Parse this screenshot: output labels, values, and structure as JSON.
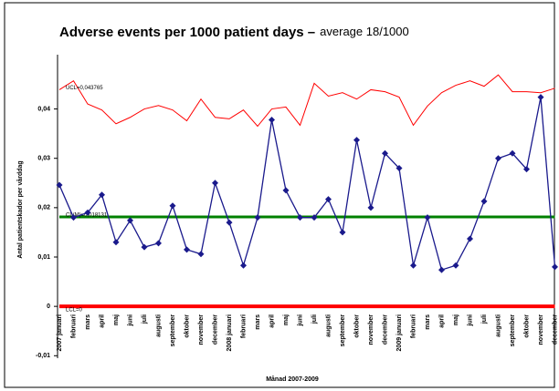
{
  "chart_data": {
    "type": "line",
    "title": "Adverse events per 1000 patient days –",
    "subtitle": "average 18/1000",
    "y_label": "Antal patientskador per vårddag",
    "x_label": "Månad 2007-2009",
    "categories": [
      "2007 januari",
      "februari",
      "mars",
      "april",
      "maj",
      "juni",
      "juli",
      "augusti",
      "september",
      "oktober",
      "november",
      "december",
      "2008 januari",
      "februari",
      "mars",
      "april",
      "maj",
      "juni",
      "juli",
      "augusti",
      "september",
      "oktober",
      "november",
      "december",
      "2009 januari",
      "februari",
      "mars",
      "april",
      "maj",
      "juni",
      "juli",
      "augusti",
      "september",
      "oktober",
      "november",
      "december"
    ],
    "series": [
      {
        "label": "UCL=0,043765",
        "color": "#ff0000",
        "values": [
          0.0439,
          0.0457,
          0.041,
          0.0398,
          0.037,
          0.0383,
          0.04,
          0.0407,
          0.0398,
          0.0376,
          0.042,
          0.0383,
          0.038,
          0.0398,
          0.0365,
          0.04,
          0.0404,
          0.0367,
          0.0452,
          0.0426,
          0.0433,
          0.042,
          0.0439,
          0.0435,
          0.0424,
          0.0367,
          0.0406,
          0.0433,
          0.0448,
          0.0457,
          0.0446,
          0.0469,
          0.0435,
          0.0435,
          0.0433,
          0.0442
        ]
      },
      {
        "label": "CL(M)=0,018131",
        "color": "#008000",
        "values": [
          0.018131,
          0.018131,
          0.018131,
          0.018131,
          0.018131,
          0.018131,
          0.018131,
          0.018131,
          0.018131,
          0.018131,
          0.018131,
          0.018131,
          0.018131,
          0.018131,
          0.018131,
          0.018131,
          0.018131,
          0.018131,
          0.018131,
          0.018131,
          0.018131,
          0.018131,
          0.018131,
          0.018131,
          0.018131,
          0.018131,
          0.018131,
          0.018131,
          0.018131,
          0.018131,
          0.018131,
          0.018131,
          0.018131,
          0.018131,
          0.018131,
          0.018131
        ]
      },
      {
        "label": "LCL=0",
        "color": "#ff0000",
        "values": [
          0,
          0,
          0,
          0,
          0,
          0,
          0,
          0,
          0,
          0,
          0,
          0,
          0,
          0,
          0,
          0,
          0,
          0,
          0,
          0,
          0,
          0,
          0,
          0,
          0,
          0,
          0,
          0,
          0,
          0,
          0,
          0,
          0,
          0,
          0,
          0
        ]
      },
      {
        "color": "#1a1a8c",
        "values": [
          0.0246,
          0.018,
          0.019,
          0.0226,
          0.013,
          0.0174,
          0.012,
          0.0128,
          0.0204,
          0.0115,
          0.0106,
          0.025,
          0.017,
          0.0083,
          0.018,
          0.0378,
          0.0235,
          0.018,
          0.018,
          0.0217,
          0.015,
          0.0337,
          0.02,
          0.031,
          0.028,
          0.0083,
          0.018,
          0.0074,
          0.0083,
          0.0137,
          0.0213,
          0.03,
          0.031,
          0.0278,
          0.0424,
          0.008
        ]
      }
    ],
    "ylim": [
      -0.0105,
      0.051
    ],
    "yticks": [
      {
        "value": -0.01,
        "label": "-0,01"
      },
      0,
      {
        "value": 0.01,
        "label": "0,01"
      },
      {
        "value": 0.02,
        "label": "0,02"
      },
      {
        "value": 0.03,
        "label": "0,03"
      },
      {
        "value": 0.04,
        "label": "0,04"
      }
    ]
  }
}
